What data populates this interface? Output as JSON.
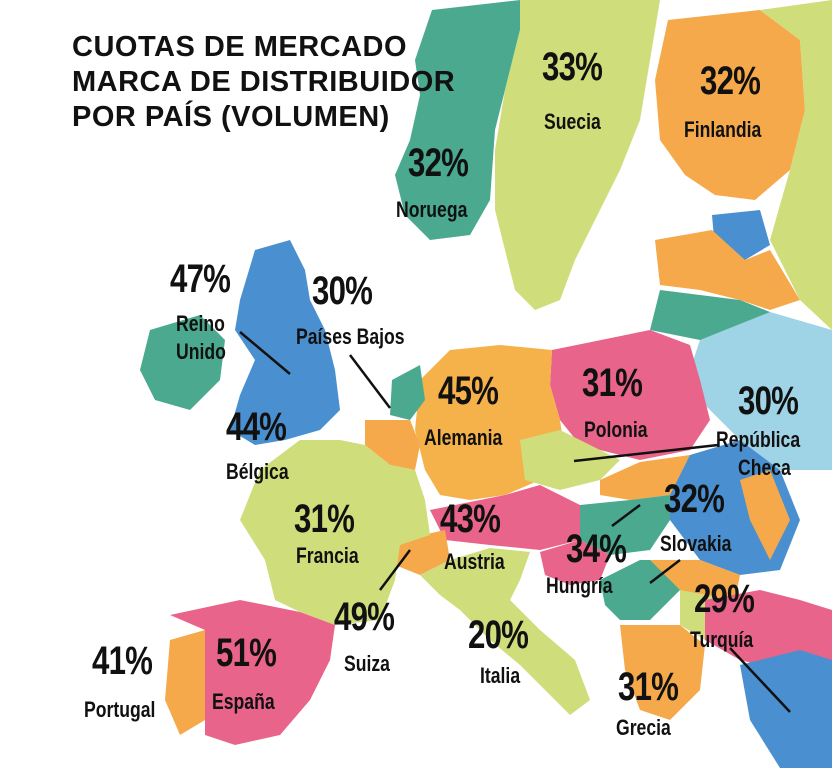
{
  "title": {
    "line1": "CUOTAS DE MERCADO",
    "line2": "MARCA DE DISTRIBUIDOR",
    "line3": "POR PAÍS (VOLUMEN)"
  },
  "countries": [
    {
      "id": "suecia",
      "name": "Suecia",
      "value": "33%",
      "color": "#cfdd7a"
    },
    {
      "id": "finlandia",
      "name": "Finlandia",
      "value": "32%",
      "color": "#f5a94b"
    },
    {
      "id": "noruega",
      "name": "Noruega",
      "value": "32%",
      "color": "#4aa98f"
    },
    {
      "id": "reino-unido",
      "name": "Reino\nUnido",
      "value": "47%",
      "color": "#4a90d0"
    },
    {
      "id": "paises-bajos",
      "name": "Países Bajos",
      "value": "30%",
      "color": "#4aa98f"
    },
    {
      "id": "alemania",
      "name": "Alemania",
      "value": "45%",
      "color": "#f5b24a"
    },
    {
      "id": "polonia",
      "name": "Polonia",
      "value": "31%",
      "color": "#e9648a"
    },
    {
      "id": "republica-checa",
      "name": "República\nCheca",
      "value": "30%",
      "color": "#cfdd7a"
    },
    {
      "id": "belgica",
      "name": "Bélgica",
      "value": "44%",
      "color": "#f5a94b"
    },
    {
      "id": "francia",
      "name": "Francia",
      "value": "31%",
      "color": "#cfdd7a"
    },
    {
      "id": "austria",
      "name": "Austria",
      "value": "43%",
      "color": "#e9648a"
    },
    {
      "id": "slovakia",
      "name": "Slovakia",
      "value": "32%",
      "color": "#f5a94b"
    },
    {
      "id": "hungria",
      "name": "Hungría",
      "value": "34%",
      "color": "#4aa98f"
    },
    {
      "id": "suiza",
      "name": "Suiza",
      "value": "49%",
      "color": "#f5a94b"
    },
    {
      "id": "italia",
      "name": "Italia",
      "value": "20%",
      "color": "#cfdd7a"
    },
    {
      "id": "turquia",
      "name": "Turquía",
      "value": "29%",
      "color": "#e9648a"
    },
    {
      "id": "portugal",
      "name": "Portugal",
      "value": "41%",
      "color": "#f5a94b"
    },
    {
      "id": "espana",
      "name": "España",
      "value": "51%",
      "color": "#e9648a"
    },
    {
      "id": "grecia",
      "name": "Grecia",
      "value": "31%",
      "color": "#f5a94b"
    }
  ],
  "palette": {
    "green": "#cfdd7a",
    "orange": "#f5a94b",
    "teal": "#4aa98f",
    "blue": "#4a90d0",
    "lightblue": "#9fd3e6",
    "pink": "#e9648a",
    "sea": "#ffffff"
  }
}
